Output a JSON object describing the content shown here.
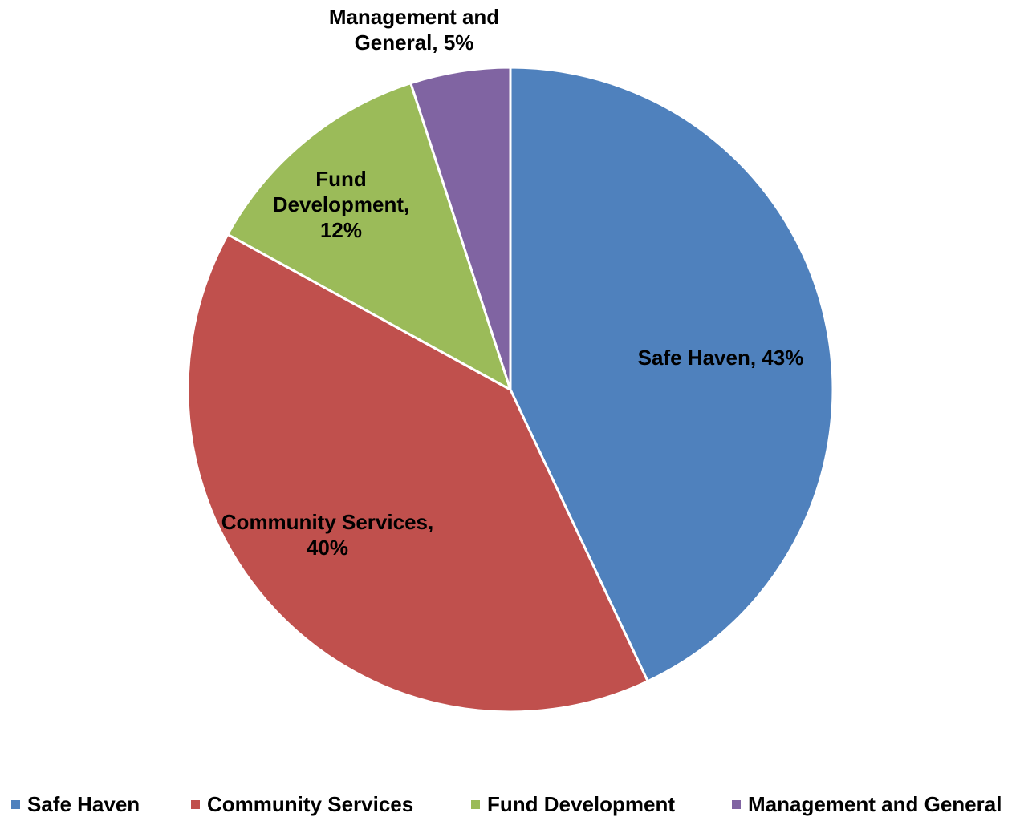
{
  "chart_data": {
    "type": "pie",
    "categories": [
      "Safe Haven",
      "Community Services",
      "Fund Development",
      "Management and General"
    ],
    "values": [
      43,
      40,
      12,
      5
    ],
    "data_labels": [
      [
        "Safe Haven, 43%"
      ],
      [
        "Community Services,",
        "40%"
      ],
      [
        "Fund",
        "Development,",
        "12%"
      ],
      [
        "Management and",
        "General, 5%"
      ]
    ],
    "colors": [
      "#4F81BD",
      "#C0504D",
      "#9BBB59",
      "#8064A2"
    ],
    "start_angle": "12 o'clock",
    "direction": "clockwise",
    "legend_position": "bottom",
    "title": ""
  }
}
